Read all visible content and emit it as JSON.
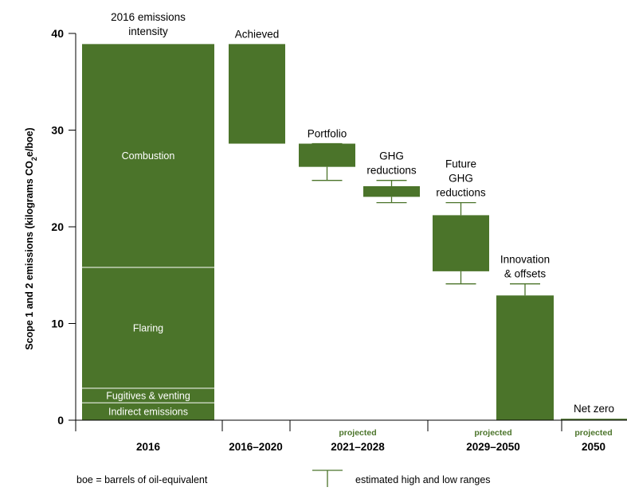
{
  "chart_data": {
    "type": "bar",
    "subtype": "waterfall",
    "ylabel_parts": [
      "Scope 1 and 2 emissions (kilograms CO",
      "2",
      "e/boe)"
    ],
    "ylim": [
      0,
      40
    ],
    "yticks": [
      "0",
      "10",
      "20",
      "30",
      "40"
    ],
    "categories": [
      {
        "label": "2016",
        "projected": ""
      },
      {
        "label": "2016–2020",
        "projected": ""
      },
      {
        "label": "2021–2028",
        "projected": "projected"
      },
      {
        "label": "2029–2050",
        "projected": "projected"
      },
      {
        "label": "2050",
        "projected": "projected"
      }
    ],
    "stacked_bar": {
      "title_lines": [
        "2016 emissions",
        "intensity"
      ],
      "segments": [
        {
          "name": "Indirect emissions",
          "from": 0,
          "to": 1.8
        },
        {
          "name": "Fugitives & venting",
          "from": 1.8,
          "to": 3.3
        },
        {
          "name": "Flaring",
          "from": 3.3,
          "to": 15.8
        },
        {
          "name": "Combustion",
          "from": 15.8,
          "to": 38.9
        }
      ]
    },
    "steps": [
      {
        "label_lines": [
          "Achieved"
        ],
        "from": 38.9,
        "to": 28.6,
        "range": null
      },
      {
        "label_lines": [
          "Portfolio"
        ],
        "from": 28.6,
        "to": 26.2,
        "range": [
          24.8,
          28.6
        ]
      },
      {
        "label_lines": [
          "GHG",
          "reductions"
        ],
        "from": 24.2,
        "to": 23.1,
        "range": [
          22.5,
          24.8
        ]
      },
      {
        "label_lines": [
          "Future",
          "GHG",
          "reductions"
        ],
        "from": 21.2,
        "to": 15.4,
        "range": [
          14.1,
          22.5
        ]
      },
      {
        "label_lines": [
          "Innovation",
          "& offsets"
        ],
        "from": 12.9,
        "to": 0,
        "range": [
          0,
          14.1
        ]
      },
      {
        "label_lines": [
          "Net zero"
        ],
        "from": 0.15,
        "to": 0,
        "range": null
      }
    ],
    "footnote": "boe = barrels of oil-equivalent",
    "legend_label": "estimated high and low ranges"
  }
}
